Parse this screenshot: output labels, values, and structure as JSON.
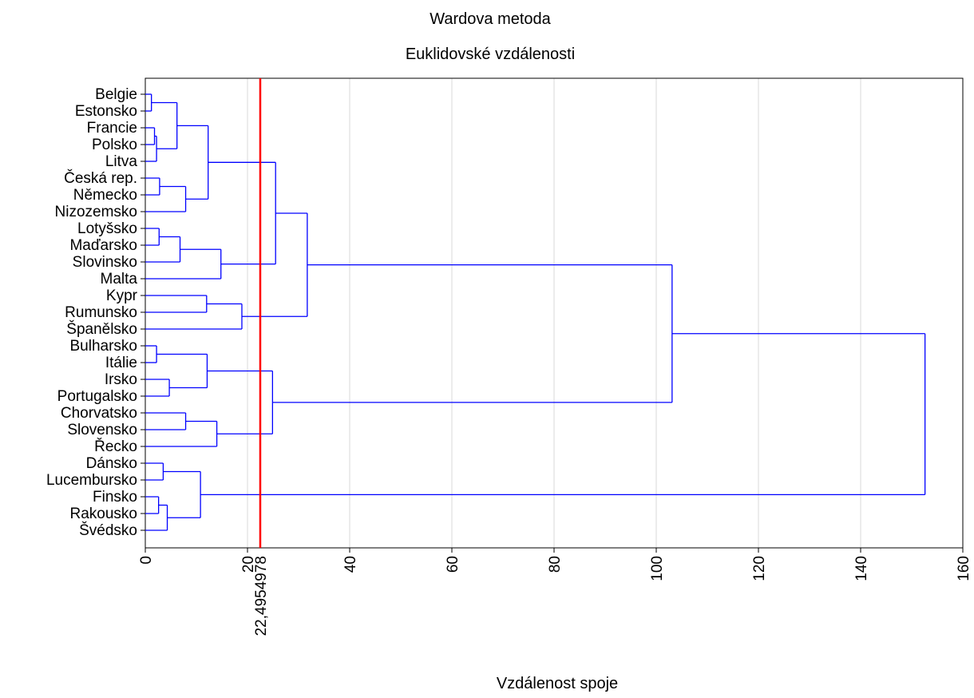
{
  "chart_data": {
    "type": "dendrogram",
    "title": "Wardova metoda",
    "subtitle": "Euklidovské vzdálenosti",
    "xlabel": "Vzdálenost spoje",
    "xlim": [
      0,
      160
    ],
    "x_ticks": [
      0,
      20,
      40,
      60,
      80,
      100,
      120,
      140,
      160
    ],
    "grid": true,
    "link_color": "#0000ff",
    "cut_line": {
      "value": 22.4954978,
      "label": "22,4954978",
      "color": "#ff0000"
    },
    "leaves": [
      "Belgie",
      "Estonsko",
      "Francie",
      "Polsko",
      "Litva",
      "Česká rep.",
      "Německo",
      "Nizozemsko",
      "Lotyšsko",
      "Maďarsko",
      "Slovinsko",
      "Malta",
      "Kypr",
      "Rumunsko",
      "Španělsko",
      "Bulharsko",
      "Itálie",
      "Irsko",
      "Portugalsko",
      "Chorvatsko",
      "Slovensko",
      "Řecko",
      "Dánsko",
      "Lucembursko",
      "Finsko",
      "Rakousko",
      "Švédsko"
    ],
    "merges": [
      {
        "id": "c1",
        "height": 1.2,
        "children": [
          "Belgie",
          "Estonsko"
        ]
      },
      {
        "id": "c2",
        "height": 1.8,
        "children": [
          "Francie",
          "Polsko"
        ]
      },
      {
        "id": "c3",
        "height": 2.2,
        "children": [
          "c2",
          "Litva"
        ]
      },
      {
        "id": "c4",
        "height": 6.2,
        "children": [
          "c1",
          "c3"
        ]
      },
      {
        "id": "c5",
        "height": 2.8,
        "children": [
          "Česká rep.",
          "Německo"
        ]
      },
      {
        "id": "c6",
        "height": 7.9,
        "children": [
          "c5",
          "Nizozemsko"
        ]
      },
      {
        "id": "c7",
        "height": 12.3,
        "children": [
          "c4",
          "c6"
        ]
      },
      {
        "id": "c8",
        "height": 2.7,
        "children": [
          "Lotyšsko",
          "Maďarsko"
        ]
      },
      {
        "id": "c9",
        "height": 6.8,
        "children": [
          "c8",
          "Slovinsko"
        ]
      },
      {
        "id": "c10",
        "height": 14.8,
        "children": [
          "c9",
          "Malta"
        ]
      },
      {
        "id": "c11",
        "height": 25.5,
        "children": [
          "c7",
          "c10"
        ]
      },
      {
        "id": "c12",
        "height": 12.0,
        "children": [
          "Kypr",
          "Rumunsko"
        ]
      },
      {
        "id": "c13",
        "height": 18.9,
        "children": [
          "c12",
          "Španělsko"
        ]
      },
      {
        "id": "c14",
        "height": 31.7,
        "children": [
          "c11",
          "c13"
        ]
      },
      {
        "id": "c15",
        "height": 2.2,
        "children": [
          "Bulharsko",
          "Itálie"
        ]
      },
      {
        "id": "c16",
        "height": 4.7,
        "children": [
          "Irsko",
          "Portugalsko"
        ]
      },
      {
        "id": "c17",
        "height": 12.1,
        "children": [
          "c15",
          "c16"
        ]
      },
      {
        "id": "c18",
        "height": 7.9,
        "children": [
          "Chorvatsko",
          "Slovensko"
        ]
      },
      {
        "id": "c19",
        "height": 14.0,
        "children": [
          "c18",
          "Řecko"
        ]
      },
      {
        "id": "c20",
        "height": 24.9,
        "children": [
          "c17",
          "c19"
        ]
      },
      {
        "id": "c21",
        "height": 103.1,
        "children": [
          "c14",
          "c20"
        ]
      },
      {
        "id": "c22",
        "height": 3.5,
        "children": [
          "Dánsko",
          "Lucembursko"
        ]
      },
      {
        "id": "c23",
        "height": 2.6,
        "children": [
          "Finsko",
          "Rakousko"
        ]
      },
      {
        "id": "c24",
        "height": 4.3,
        "children": [
          "c23",
          "Švédsko"
        ]
      },
      {
        "id": "c25",
        "height": 10.8,
        "children": [
          "c22",
          "c24"
        ]
      },
      {
        "id": "c26",
        "height": 152.6,
        "children": [
          "c21",
          "c25"
        ]
      }
    ]
  }
}
